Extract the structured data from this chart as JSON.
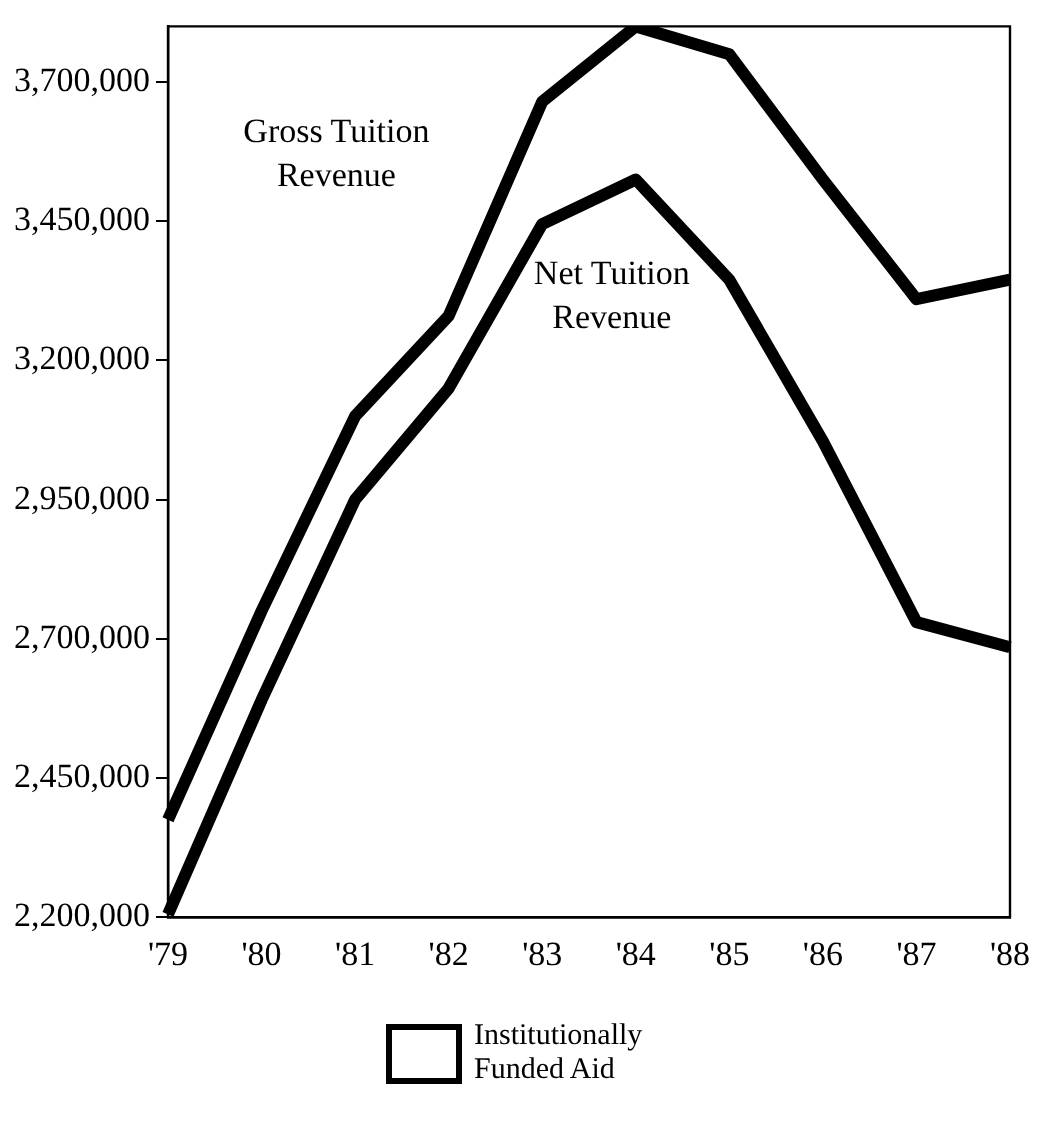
{
  "chart_data": {
    "type": "line",
    "categories": [
      "'79",
      "'80",
      "'81",
      "'82",
      "'83",
      "'84",
      "'85",
      "'86",
      "'87",
      "'88"
    ],
    "series": [
      {
        "name": "Gross Tuition Revenue",
        "color": "#000000",
        "values": [
          2375000,
          2750000,
          3100000,
          3280000,
          3665000,
          3800000,
          3750000,
          3525000,
          3310000,
          3345000
        ]
      },
      {
        "name": "Net Tuition Revenue",
        "color": "#000000",
        "values": [
          2205000,
          2590000,
          2950000,
          3150000,
          3445000,
          3525000,
          3345000,
          3055000,
          2730000,
          2685000
        ]
      }
    ],
    "ylim": [
      2200000,
      3800000
    ],
    "yticks": [
      {
        "value": 2200000,
        "label": "2,200,000"
      },
      {
        "value": 2450000,
        "label": "2,450,000"
      },
      {
        "value": 2700000,
        "label": "2,700,000"
      },
      {
        "value": 2950000,
        "label": "2,950,000"
      },
      {
        "value": 3200000,
        "label": "3,200,000"
      },
      {
        "value": 3450000,
        "label": "3,450,000"
      },
      {
        "value": 3700000,
        "label": "3,700,000"
      }
    ],
    "grid": false,
    "legend": false,
    "marker": "none",
    "line_style": "solid",
    "annotations": [
      "Institutionally Funded Aid"
    ]
  }
}
